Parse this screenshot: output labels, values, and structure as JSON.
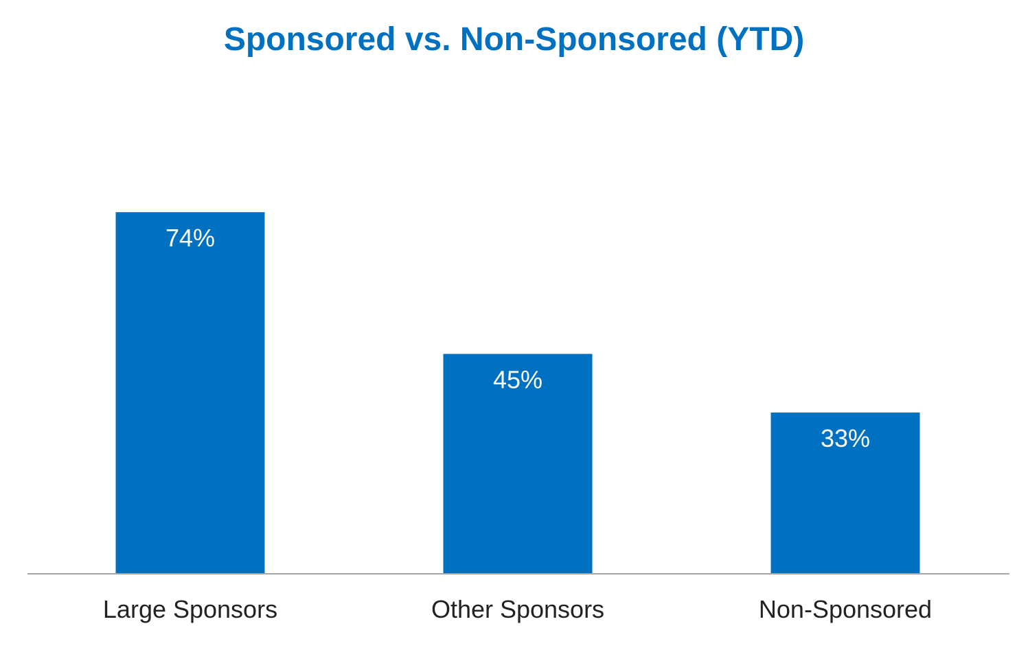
{
  "chart_data": {
    "type": "bar",
    "title": "Sponsored vs. Non-Sponsored (YTD)",
    "categories": [
      "Large Sponsors",
      "Other Sponsors",
      "Non-Sponsored"
    ],
    "values": [
      74,
      45,
      33
    ],
    "data_labels": [
      "74%",
      "45%",
      "33%"
    ],
    "xlabel": "",
    "ylabel": "",
    "ylim": [
      0,
      100
    ],
    "grid": false,
    "legend": "none",
    "colors": {
      "bar": "#0070C0",
      "title": "#0070C0",
      "axis": "#A6A6A6",
      "label_text": "#222222",
      "data_label_text": "#ffffff"
    }
  }
}
